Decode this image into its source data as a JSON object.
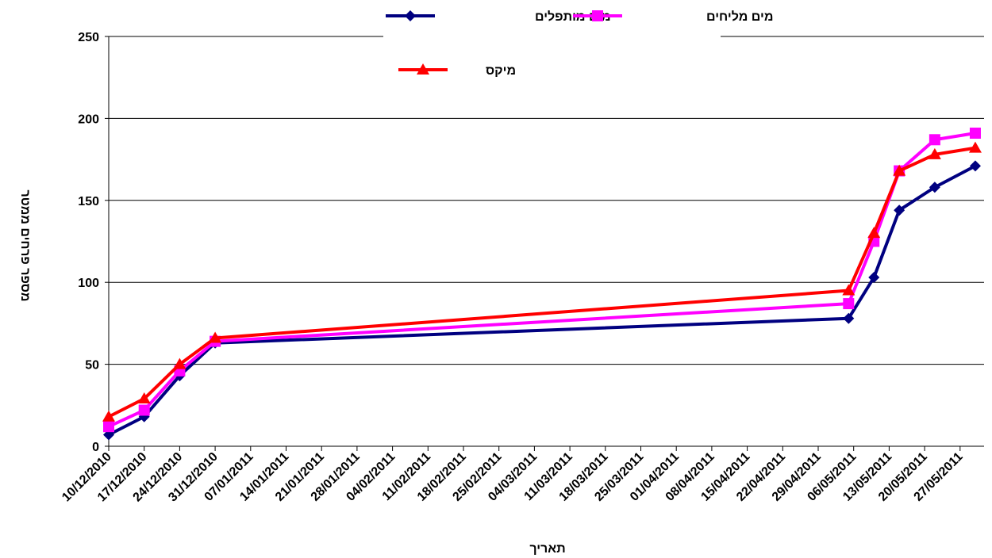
{
  "chart_data": {
    "type": "line",
    "xlabel": "תאריך",
    "ylabel": "מספר פרחים ממטר",
    "ylim": [
      0,
      250
    ],
    "yticks": [
      0,
      50,
      100,
      150,
      200,
      250
    ],
    "grid": "horizontal",
    "legend_position": "top",
    "x_tick_labels": [
      "10/12/2010",
      "17/12/2010",
      "24/12/2010",
      "31/12/2010",
      "07/01/2011",
      "14/01/2011",
      "21/01/2011",
      "28/01/2011",
      "04/02/2011",
      "11/02/2011",
      "18/02/2011",
      "25/02/2011",
      "04/03/2011",
      "11/03/2011",
      "18/03/2011",
      "25/03/2011",
      "01/04/2011",
      "08/04/2011",
      "15/04/2011",
      "22/04/2011",
      "29/04/2011",
      "06/05/2011",
      "13/05/2011",
      "20/05/2011",
      "27/05/2011"
    ],
    "x": [
      "2010-12-10",
      "2010-12-17",
      "2010-12-24",
      "2010-12-31",
      "2011-05-05",
      "2011-05-10",
      "2011-05-15",
      "2011-05-22",
      "2011-05-30"
    ],
    "series": [
      {
        "name": "מים מותפלים",
        "color": "#000080",
        "marker": "diamond",
        "values": [
          7,
          18,
          43,
          63,
          78,
          103,
          144,
          158,
          171
        ]
      },
      {
        "name": "מים מליחים",
        "color": "#ff00ff",
        "marker": "square",
        "values": [
          12,
          22,
          46,
          64,
          87,
          125,
          168,
          187,
          191
        ]
      },
      {
        "name": "מיקס",
        "color": "#ff0000",
        "marker": "triangle",
        "values": [
          18,
          29,
          50,
          66,
          95,
          130,
          168,
          178,
          182
        ]
      }
    ]
  }
}
